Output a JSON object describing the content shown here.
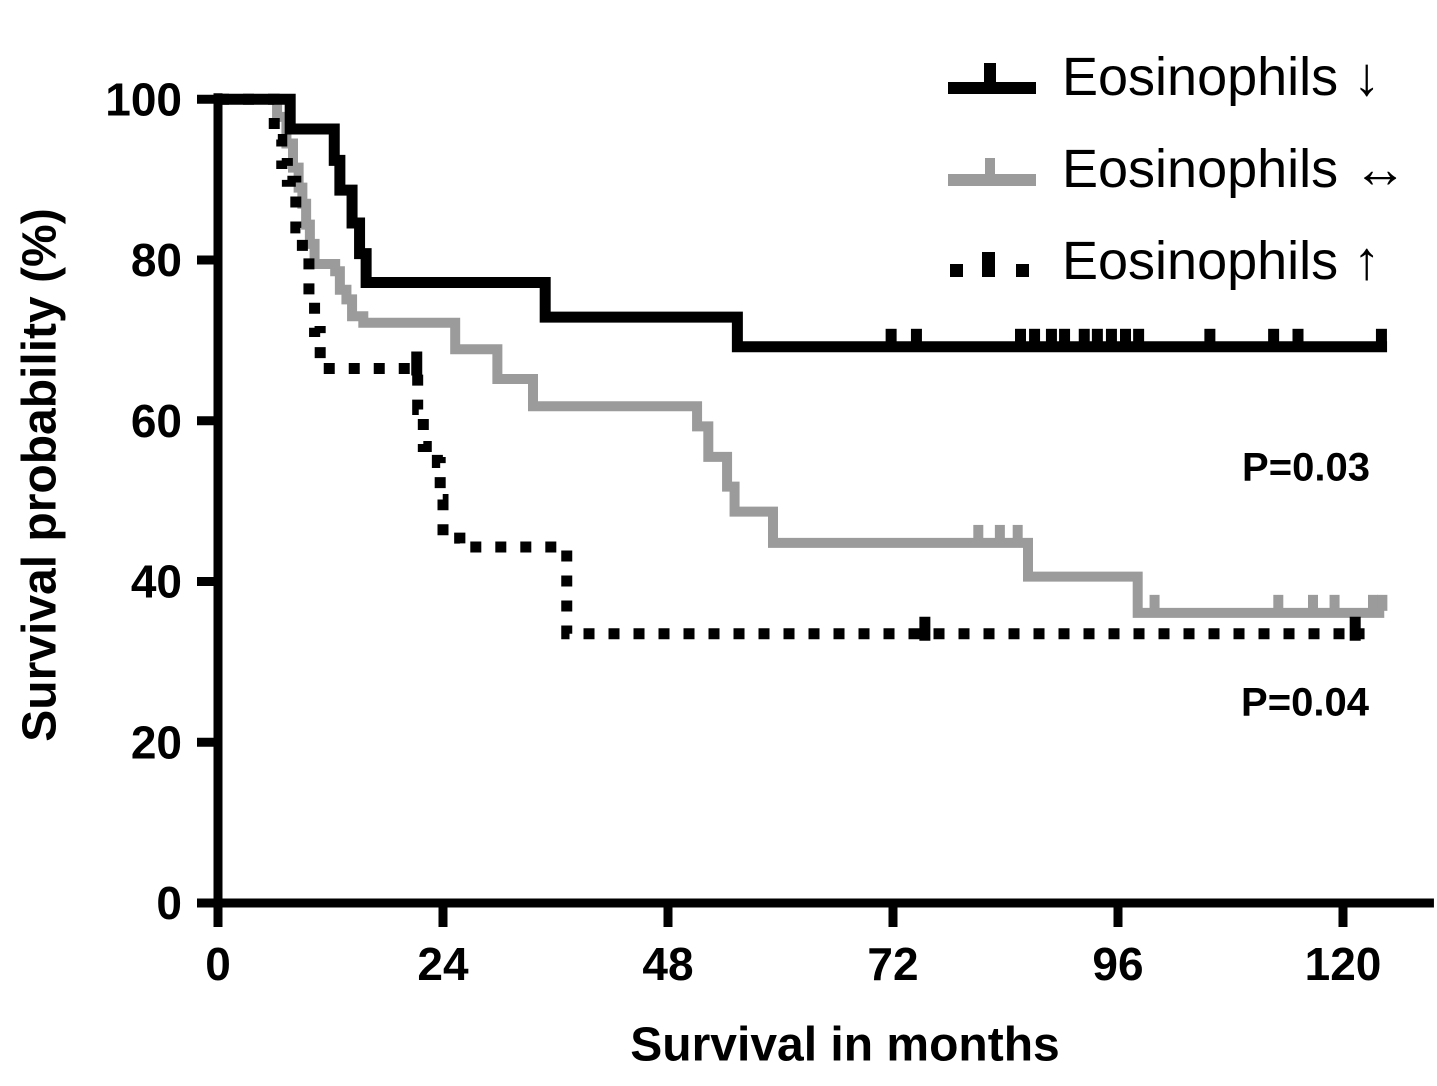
{
  "figure": {
    "background": "#ffffff",
    "text_color": "#000000"
  },
  "annotations_panel": {
    "p_top": "P=0.03",
    "p_bottom": "P=0.04"
  },
  "chart_data": {
    "type": "line",
    "variant": "kaplan_meier_step",
    "title": "",
    "xlabel": "Survival in months",
    "ylabel": "Survival probability (%)",
    "xlim": [
      0,
      129.7
    ],
    "ylim": [
      0,
      100
    ],
    "x_ticks": [
      0,
      24,
      48,
      72,
      96,
      120
    ],
    "y_ticks": [
      0,
      20,
      40,
      60,
      80,
      100
    ],
    "grid": false,
    "legend_position": "top-right",
    "series": [
      {
        "name": "Eosinophils ↓",
        "color": "#000000",
        "style": "solid",
        "width": 11,
        "steps": [
          [
            0,
            100
          ],
          [
            7.7,
            96.3
          ],
          [
            12.4,
            92.4
          ],
          [
            13.0,
            88.7
          ],
          [
            14.3,
            84.6
          ],
          [
            15.1,
            80.8
          ],
          [
            15.8,
            77.2
          ],
          [
            34.9,
            72.9
          ],
          [
            55.4,
            69.2
          ]
        ],
        "end_month": 124.7,
        "censor_marks": [
          71.8,
          74.5,
          85.6,
          87.1,
          88.9,
          90.3,
          92.4,
          93.8,
          95.3,
          96.8,
          98.2,
          105.8,
          112.6,
          115.2,
          124.1
        ]
      },
      {
        "name": "Eosinophils ↔",
        "color": "#9b9b9b",
        "style": "solid",
        "width": 10,
        "steps": [
          [
            0,
            100
          ],
          [
            6.3,
            97.8
          ],
          [
            7.3,
            94.5
          ],
          [
            8.0,
            91.5
          ],
          [
            8.6,
            89.0
          ],
          [
            9.0,
            87.0
          ],
          [
            9.4,
            84.4
          ],
          [
            9.8,
            82.0
          ],
          [
            10.3,
            79.5
          ],
          [
            12.5,
            78.6
          ],
          [
            13.0,
            76.3
          ],
          [
            13.7,
            75.1
          ],
          [
            14.3,
            73.0
          ],
          [
            15.5,
            72.2
          ],
          [
            25.3,
            68.9
          ],
          [
            29.8,
            65.2
          ],
          [
            33.6,
            61.8
          ],
          [
            51.1,
            59.3
          ],
          [
            52.3,
            55.5
          ],
          [
            54.3,
            51.8
          ],
          [
            55.1,
            48.7
          ],
          [
            59.2,
            44.8
          ],
          [
            86.4,
            40.6
          ],
          [
            98.1,
            36.1
          ]
        ],
        "end_month": 124.4,
        "censor_marks": [
          81.1,
          83.4,
          85.3,
          99.9,
          113.1,
          116.8,
          119.1,
          123.2,
          124.2
        ]
      },
      {
        "name": "Eosinophils ↑",
        "color": "#000000",
        "style": "dotted",
        "width": 11,
        "steps": [
          [
            0,
            100
          ],
          [
            6.0,
            95.0
          ],
          [
            6.8,
            92.0
          ],
          [
            7.4,
            89.8
          ],
          [
            8.3,
            84.0
          ],
          [
            9.0,
            80.3
          ],
          [
            9.7,
            75.7
          ],
          [
            10.3,
            71.1
          ],
          [
            10.9,
            66.5
          ],
          [
            21.3,
            61.4
          ],
          [
            21.9,
            56.8
          ],
          [
            23.4,
            54.8
          ],
          [
            23.7,
            50.2
          ],
          [
            24.0,
            45.4
          ],
          [
            25.8,
            44.3
          ],
          [
            37.2,
            33.5
          ]
        ],
        "end_month": 122.3,
        "censor_marks": [
          21.2,
          75.4,
          121.3
        ]
      }
    ],
    "annotations": [
      {
        "text": "P=0.03",
        "x_month": 116.0,
        "y_pct": 54.1
      },
      {
        "text": "P=0.04",
        "x_month": 115.9,
        "y_pct": 24.9
      }
    ]
  }
}
